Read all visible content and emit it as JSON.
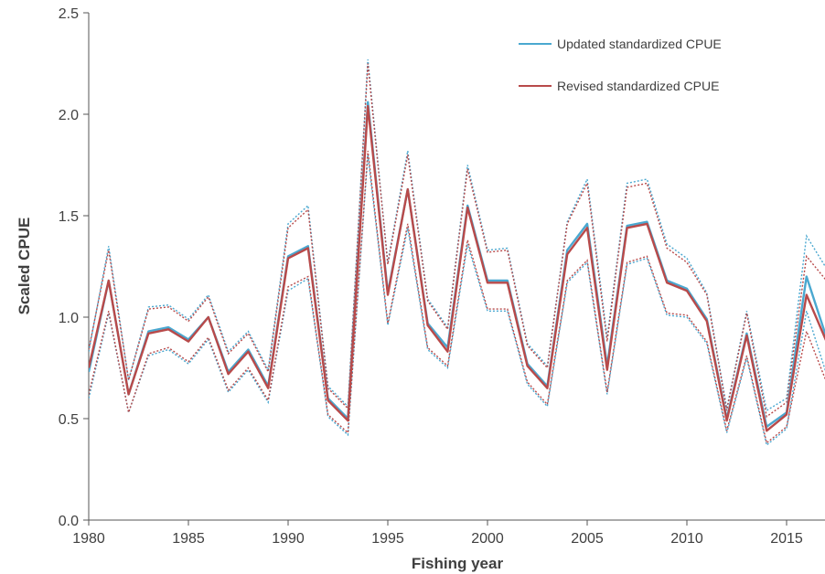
{
  "chart_data": {
    "type": "line",
    "xlabel": "Fishing year",
    "ylabel": "Scaled CPUE",
    "xlim": [
      1980,
      2017
    ],
    "ylim": [
      0,
      2.5
    ],
    "xticks": [
      "1980",
      "1985",
      "1990",
      "1995",
      "2000",
      "2005",
      "2010",
      "2015"
    ],
    "yticks": [
      "0.0",
      "0.5",
      "1.0",
      "1.5",
      "2.0",
      "2.5"
    ],
    "grid": false,
    "legend_position": "top-right",
    "x": [
      1980,
      1981,
      1982,
      1983,
      1984,
      1985,
      1986,
      1987,
      1988,
      1989,
      1990,
      1991,
      1992,
      1993,
      1994,
      1995,
      1996,
      1997,
      1998,
      1999,
      2000,
      2001,
      2002,
      2003,
      2004,
      2005,
      2006,
      2007,
      2008,
      2009,
      2010,
      2011,
      2012,
      2013,
      2014,
      2015,
      2016,
      2017
    ],
    "series": [
      {
        "name": "Updated standardized CPUE",
        "color": "#4aa8d0",
        "values": [
          0.73,
          1.18,
          0.62,
          0.93,
          0.95,
          0.89,
          1.0,
          0.73,
          0.84,
          0.66,
          1.3,
          1.35,
          0.6,
          0.5,
          2.06,
          1.12,
          1.63,
          0.97,
          0.85,
          1.55,
          1.18,
          1.18,
          0.77,
          0.66,
          1.33,
          1.46,
          0.76,
          1.45,
          1.47,
          1.18,
          1.14,
          0.99,
          0.5,
          0.92,
          0.46,
          0.53,
          1.2,
          0.9
        ],
        "upper": [
          0.83,
          1.35,
          0.69,
          1.05,
          1.06,
          0.99,
          1.11,
          0.83,
          0.93,
          0.74,
          1.46,
          1.55,
          0.66,
          0.56,
          2.27,
          1.27,
          1.82,
          1.09,
          0.95,
          1.75,
          1.33,
          1.34,
          0.87,
          0.76,
          1.47,
          1.68,
          0.9,
          1.66,
          1.68,
          1.36,
          1.29,
          1.12,
          0.55,
          1.03,
          0.54,
          0.6,
          1.4,
          1.24
        ],
        "lower": [
          0.6,
          1.02,
          0.53,
          0.81,
          0.84,
          0.77,
          0.89,
          0.63,
          0.74,
          0.58,
          1.13,
          1.19,
          0.51,
          0.42,
          1.8,
          0.96,
          1.44,
          0.84,
          0.75,
          1.36,
          1.03,
          1.03,
          0.67,
          0.56,
          1.17,
          1.27,
          0.62,
          1.26,
          1.29,
          1.01,
          1.0,
          0.87,
          0.43,
          0.8,
          0.37,
          0.45,
          1.03,
          0.72
        ]
      },
      {
        "name": "Revised standardized CPUE",
        "color": "#b84a4a",
        "values": [
          0.75,
          1.18,
          0.62,
          0.92,
          0.94,
          0.88,
          1.0,
          0.72,
          0.83,
          0.65,
          1.29,
          1.34,
          0.59,
          0.49,
          2.04,
          1.11,
          1.63,
          0.96,
          0.83,
          1.54,
          1.17,
          1.17,
          0.76,
          0.65,
          1.31,
          1.44,
          0.74,
          1.44,
          1.46,
          1.17,
          1.13,
          0.98,
          0.49,
          0.91,
          0.44,
          0.52,
          1.11,
          0.88
        ],
        "upper": [
          0.84,
          1.33,
          0.69,
          1.04,
          1.05,
          0.98,
          1.1,
          0.82,
          0.92,
          0.73,
          1.44,
          1.53,
          0.65,
          0.55,
          2.25,
          1.26,
          1.8,
          1.08,
          0.94,
          1.73,
          1.32,
          1.33,
          0.86,
          0.75,
          1.46,
          1.66,
          0.88,
          1.64,
          1.66,
          1.34,
          1.27,
          1.11,
          0.54,
          1.02,
          0.51,
          0.58,
          1.3,
          1.18
        ],
        "lower": [
          0.62,
          1.03,
          0.53,
          0.82,
          0.85,
          0.78,
          0.9,
          0.64,
          0.75,
          0.59,
          1.15,
          1.2,
          0.52,
          0.43,
          1.82,
          0.97,
          1.46,
          0.85,
          0.76,
          1.38,
          1.04,
          1.04,
          0.68,
          0.57,
          1.18,
          1.28,
          0.63,
          1.27,
          1.3,
          1.02,
          1.01,
          0.88,
          0.44,
          0.81,
          0.38,
          0.46,
          0.93,
          0.68
        ]
      }
    ]
  }
}
